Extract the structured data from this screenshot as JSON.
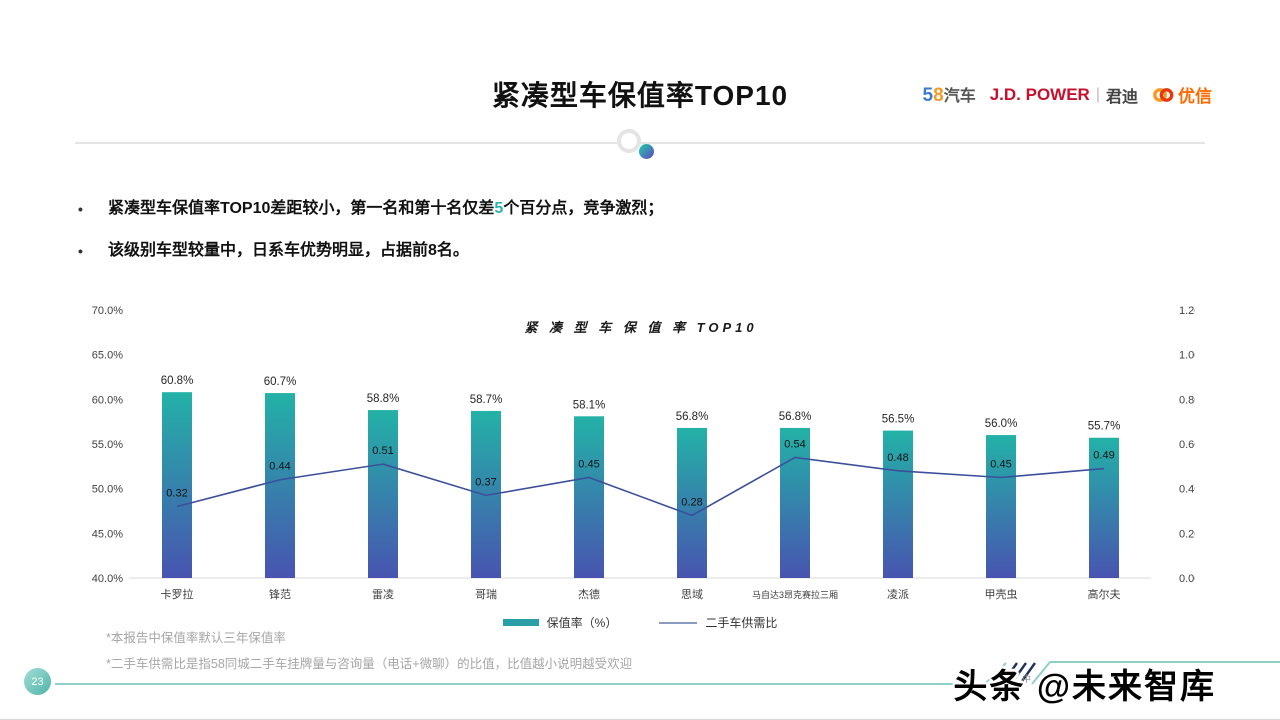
{
  "header": {
    "title": "紧凑型车保值率TOP10",
    "logos": {
      "logo58": {
        "n5": "5",
        "n8": "8",
        "cn": "汽车"
      },
      "jdpower": {
        "en": "J.D. POWER",
        "sep": "|",
        "cn": "君迪"
      },
      "youxin": {
        "cn": "优信"
      }
    }
  },
  "bullets": [
    {
      "marker": "•",
      "pre": "紧凑型车保值率TOP10差距较小，第一名和第十名仅差",
      "highlight": "5",
      "post": "个百分点，竞争激烈；"
    },
    {
      "marker": "•",
      "pre": "该级别车型较量中，日系车优势明显，占据前8名。",
      "highlight": "",
      "post": ""
    }
  ],
  "chart_data": {
    "type": "bar",
    "title": "紧 凑 型 车 保 值 率 TOP10",
    "categories": [
      "卡罗拉",
      "锋范",
      "雷凌",
      "哥瑞",
      "杰德",
      "思域",
      "马自达3昂克赛拉三厢",
      "凌派",
      "甲壳虫",
      "高尔夫"
    ],
    "series": [
      {
        "name": "保值率（%）",
        "type": "bar",
        "axis": "left",
        "values": [
          60.8,
          60.7,
          58.8,
          58.7,
          58.1,
          56.8,
          56.8,
          56.5,
          56.0,
          55.7
        ],
        "labels": [
          "60.8%",
          "60.7%",
          "58.8%",
          "58.7%",
          "58.1%",
          "56.8%",
          "56.8%",
          "56.5%",
          "56.0%",
          "55.7%"
        ]
      },
      {
        "name": "二手车供需比",
        "type": "line",
        "axis": "right",
        "values": [
          0.32,
          0.44,
          0.51,
          0.37,
          0.45,
          0.28,
          0.54,
          0.48,
          0.45,
          0.49
        ],
        "labels": [
          "0.32",
          "0.44",
          "0.51",
          "0.37",
          "0.45",
          "0.28",
          "0.54",
          "0.48",
          "0.45",
          "0.49"
        ]
      }
    ],
    "left_axis": {
      "min": 40,
      "max": 70,
      "ticks": [
        "70.0%",
        "65.0%",
        "60.0%",
        "55.0%",
        "50.0%",
        "45.0%",
        "40.0%"
      ]
    },
    "right_axis": {
      "min": 0.0,
      "max": 1.2,
      "ticks": [
        "1.20",
        "1.00",
        "0.80",
        "0.60",
        "0.40",
        "0.20",
        "0.00"
      ]
    },
    "grid": false,
    "legend_position": "bottom",
    "colors": {
      "bar_top": "#23b2a7",
      "bar_bottom": "#4854b0",
      "line": "#3c4f9b"
    }
  },
  "legend": {
    "bar_label": "保值率（%）",
    "line_label": "二手车供需比"
  },
  "footnotes": [
    "*本报告中保值率默认三年保值率",
    "*二手车供需比是指58同城二手车挂牌量与咨询量（电话+微聊）的比值，比值越小说明越受欢迎"
  ],
  "footer": {
    "page": "23",
    "watermark_small": "中",
    "watermark": "头条 @未来智库"
  },
  "colors": {
    "accent_teal": "#2ab5ad",
    "divider_gray": "#e4e4e4",
    "footnote_gray": "#a6a6a6",
    "footer_line_teal": "#8ecfca",
    "jdpower_red": "#c8102e",
    "logo58_blue": "#3f7ad1",
    "logo58_orange": "#f59a23",
    "youxin_orange": "#ff6a00"
  }
}
